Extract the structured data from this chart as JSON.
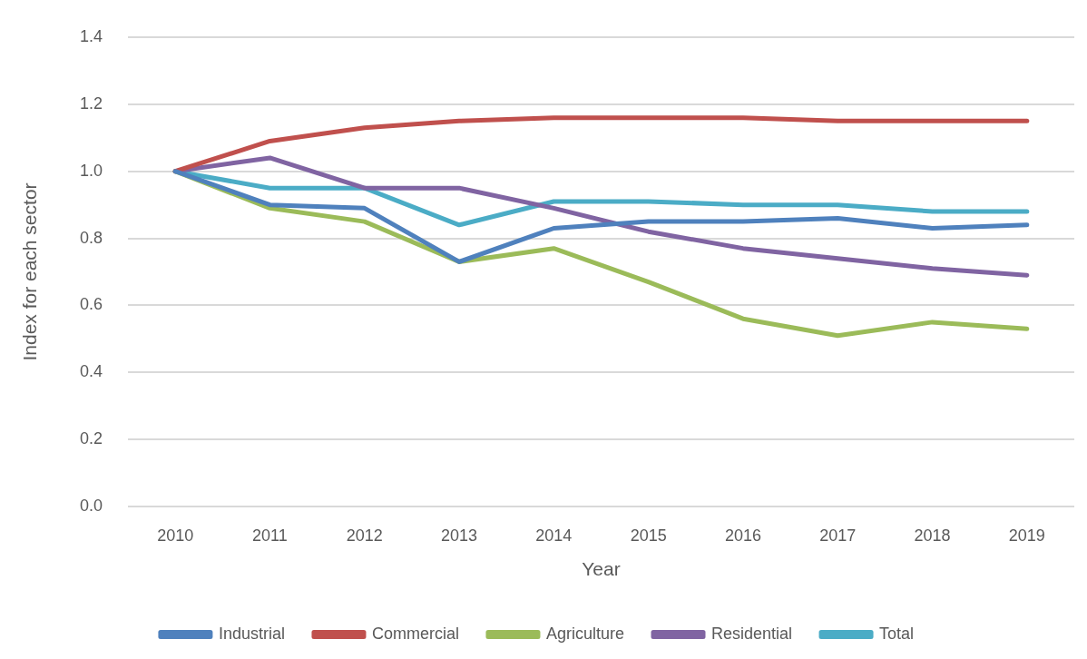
{
  "chart_data": {
    "type": "line",
    "xlabel": "Year",
    "ylabel": "Index for each sector",
    "categories": [
      "2010",
      "2011",
      "2012",
      "2013",
      "2014",
      "2015",
      "2016",
      "2017",
      "2018",
      "2019"
    ],
    "series": [
      {
        "name": "Industrial",
        "color": "#4f81bd",
        "values": [
          1.0,
          0.9,
          0.89,
          0.73,
          0.83,
          0.85,
          0.85,
          0.86,
          0.83,
          0.84
        ]
      },
      {
        "name": "Commercial",
        "color": "#c0504d",
        "values": [
          1.0,
          1.09,
          1.13,
          1.15,
          1.16,
          1.16,
          1.16,
          1.15,
          1.15,
          1.15
        ]
      },
      {
        "name": "Agriculture",
        "color": "#9bbb59",
        "values": [
          1.0,
          0.89,
          0.85,
          0.73,
          0.77,
          0.67,
          0.56,
          0.51,
          0.55,
          0.53
        ]
      },
      {
        "name": "Residential",
        "color": "#8064a2",
        "values": [
          1.0,
          1.04,
          0.95,
          0.95,
          0.89,
          0.82,
          0.77,
          0.74,
          0.71,
          0.69
        ]
      },
      {
        "name": "Total",
        "color": "#4bacc6",
        "values": [
          1.0,
          0.95,
          0.95,
          0.84,
          0.91,
          0.91,
          0.9,
          0.9,
          0.88,
          0.88
        ]
      }
    ],
    "ylim": [
      0,
      1.4
    ],
    "yticks": [
      {
        "value": 0,
        "label": "0.0"
      },
      0.2,
      0.4,
      0.6,
      0.8,
      {
        "value": 1,
        "label": "1.0"
      },
      1.2,
      1.4
    ],
    "grid": "y",
    "legend": "bottom",
    "marker": "none"
  }
}
